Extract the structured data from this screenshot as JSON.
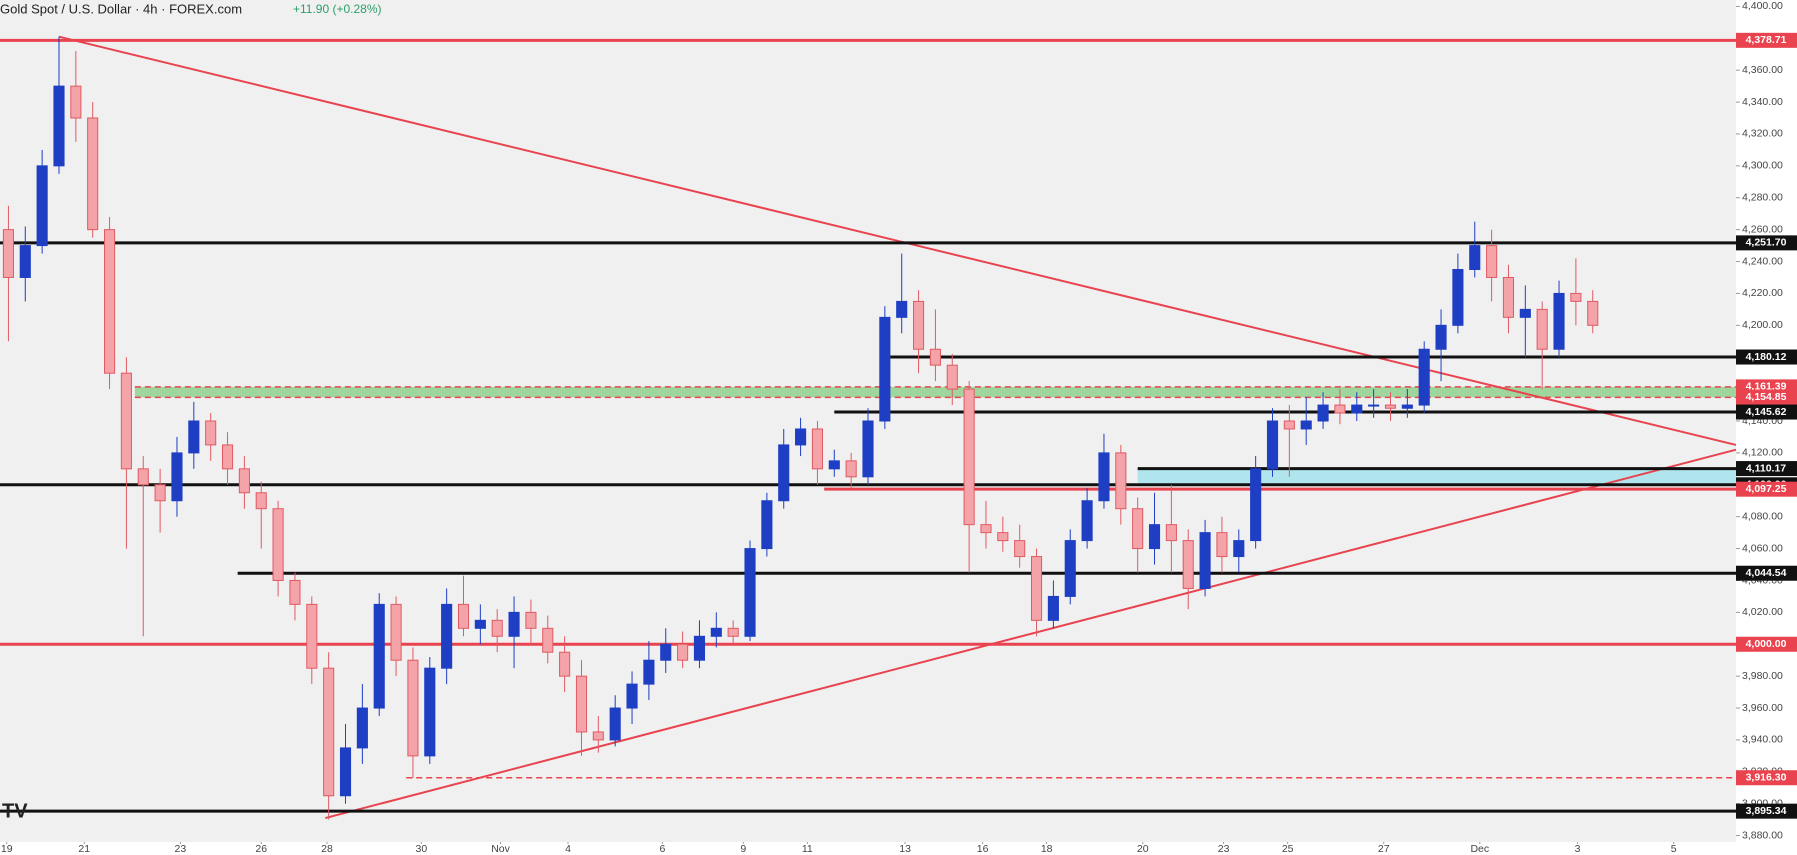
{
  "chart_data": {
    "type": "candlestick",
    "title": "Gold Spot / U.S. Dollar · 4h · FOREX.com",
    "change": "+11.90 (+0.28%)",
    "up_color": "#1e3ec4",
    "down_color": "#f4a3a8",
    "down_edge": "#e05a63",
    "xlim": [
      -0.5,
      102.5
    ],
    "ylim": [
      3876,
      4404
    ],
    "xticks": [
      {
        "value": -0.1,
        "label": "19"
      },
      {
        "value": 4.5,
        "label": "21"
      },
      {
        "value": 10.2,
        "label": "23"
      },
      {
        "value": 15.0,
        "label": "26"
      },
      {
        "value": 18.9,
        "label": "28"
      },
      {
        "value": 24.5,
        "label": "30"
      },
      {
        "value": 29.2,
        "label": "Nov"
      },
      {
        "value": 33.2,
        "label": "4"
      },
      {
        "value": 38.8,
        "label": "6"
      },
      {
        "value": 43.6,
        "label": "9"
      },
      {
        "value": 47.4,
        "label": "11"
      },
      {
        "value": 53.2,
        "label": "13"
      },
      {
        "value": 57.8,
        "label": "16"
      },
      {
        "value": 61.6,
        "label": "18"
      },
      {
        "value": 67.3,
        "label": "20"
      },
      {
        "value": 72.1,
        "label": "23"
      },
      {
        "value": 75.9,
        "label": "25"
      },
      {
        "value": 81.6,
        "label": "27"
      },
      {
        "value": 87.3,
        "label": "Dec"
      },
      {
        "value": 93.1,
        "label": "3"
      },
      {
        "value": 98.8,
        "label": "5"
      }
    ],
    "yticks": [
      {
        "value": 3880,
        "label": "3,880.00"
      },
      {
        "value": 3900,
        "label": "3,900.00"
      },
      {
        "value": 3920,
        "label": "3,920.00"
      },
      {
        "value": 3940,
        "label": "3,940.00"
      },
      {
        "value": 3960,
        "label": "3,960.00"
      },
      {
        "value": 3980,
        "label": "3,980.00"
      },
      {
        "value": 4000,
        "label": "4,000.00"
      },
      {
        "value": 4020,
        "label": "4,020.00"
      },
      {
        "value": 4040,
        "label": "4,040.00"
      },
      {
        "value": 4060,
        "label": "4,060.00"
      },
      {
        "value": 4080,
        "label": "4,080.00"
      },
      {
        "value": 4100,
        "label": "4,100.00"
      },
      {
        "value": 4120,
        "label": "4,120.00"
      },
      {
        "value": 4140,
        "label": "4,140.00"
      },
      {
        "value": 4160,
        "label": "4,160.00"
      },
      {
        "value": 4180,
        "label": "4,180.00"
      },
      {
        "value": 4200,
        "label": "4,200.00"
      },
      {
        "value": 4220,
        "label": "4,220.00"
      },
      {
        "value": 4240,
        "label": "4,240.00"
      },
      {
        "value": 4260,
        "label": "4,260.00"
      },
      {
        "value": 4280,
        "label": "4,280.00"
      },
      {
        "value": 4300,
        "label": "4,300.00"
      },
      {
        "value": 4320,
        "label": "4,320.00"
      },
      {
        "value": 4340,
        "label": "4,340.00"
      },
      {
        "value": 4360,
        "label": "4,360.00"
      },
      {
        "value": 4380,
        "label": "4,380.00"
      },
      {
        "value": 4400,
        "label": "4,400.00"
      }
    ],
    "open": [
      4260,
      4230,
      4250,
      4300,
      4350,
      4330,
      4260,
      4170,
      4110,
      4100,
      4090,
      4120,
      4140,
      4125,
      4110,
      4095,
      4085,
      4040,
      4025,
      3985,
      3905,
      3935,
      3960,
      4025,
      3990,
      3930,
      3985,
      4025,
      4010,
      4015,
      4005,
      4020,
      4010,
      3995,
      3980,
      3945,
      3940,
      3960,
      3975,
      3990,
      4000,
      3990,
      4005,
      4010,
      4005,
      4060,
      4090,
      4125,
      4135,
      4110,
      4115,
      4105,
      4140,
      4205,
      4215,
      4185,
      4175,
      4160,
      4075,
      4070,
      4065,
      4055,
      4015,
      4030,
      4065,
      4090,
      4120,
      4085,
      4060,
      4075,
      4065,
      4035,
      4070,
      4055,
      4065,
      4110,
      4140,
      4135,
      4140,
      4150,
      4145,
      4150,
      4150,
      4148,
      4150,
      4185,
      4200,
      4235,
      4250,
      4230,
      4205,
      4210,
      4185,
      4220,
      4215
    ],
    "high": [
      4275,
      4262,
      4310,
      4381,
      4372,
      4340,
      4268,
      4180,
      4118,
      4110,
      4130,
      4152,
      4145,
      4133,
      4118,
      4102,
      4090,
      4045,
      4030,
      3995,
      3950,
      3975,
      4032,
      4030,
      3998,
      3992,
      4035,
      4043,
      4025,
      4022,
      4030,
      4028,
      4018,
      4005,
      3990,
      3955,
      3968,
      3983,
      4002,
      4010,
      4008,
      4015,
      4020,
      4015,
      4065,
      4095,
      4135,
      4142,
      4140,
      4122,
      4120,
      4148,
      4212,
      4245,
      4222,
      4210,
      4182,
      4165,
      4090,
      4080,
      4075,
      4060,
      4040,
      4072,
      4098,
      4132,
      4125,
      4092,
      4095,
      4100,
      4072,
      4078,
      4080,
      4072,
      4118,
      4148,
      4150,
      4155,
      4158,
      4160,
      4158,
      4160,
      4158,
      4160,
      4190,
      4210,
      4245,
      4265,
      4260,
      4238,
      4225,
      4215,
      4228,
      4242,
      4222
    ],
    "low": [
      4190,
      4215,
      4245,
      4295,
      4315,
      4255,
      4160,
      4060,
      4005,
      4070,
      4080,
      4110,
      4115,
      4100,
      4085,
      4060,
      4030,
      4015,
      3975,
      3890,
      3900,
      3925,
      3955,
      3980,
      3916,
      3925,
      3975,
      4005,
      4000,
      3995,
      3985,
      4000,
      3988,
      3970,
      3930,
      3932,
      3936,
      3950,
      3965,
      3982,
      3985,
      3985,
      3998,
      4000,
      4002,
      4055,
      4085,
      4118,
      4100,
      4105,
      4098,
      4100,
      4135,
      4195,
      4170,
      4165,
      4150,
      4045,
      4060,
      4058,
      4048,
      4005,
      4010,
      4025,
      4060,
      4085,
      4075,
      4045,
      4050,
      4045,
      4022,
      4030,
      4045,
      4045,
      4060,
      4105,
      4105,
      4125,
      4135,
      4138,
      4140,
      4142,
      4140,
      4142,
      4145,
      4165,
      4195,
      4230,
      4215,
      4195,
      4180,
      4160,
      4180,
      4200,
      4195
    ],
    "close": [
      4230,
      4250,
      4300,
      4350,
      4330,
      4260,
      4170,
      4110,
      4100,
      4090,
      4120,
      4140,
      4125,
      4110,
      4095,
      4085,
      4040,
      4025,
      3985,
      3905,
      3935,
      3960,
      4025,
      3990,
      3930,
      3985,
      4025,
      4010,
      4015,
      4005,
      4020,
      4010,
      3995,
      3980,
      3945,
      3940,
      3960,
      3975,
      3990,
      4000,
      3990,
      4005,
      4010,
      4005,
      4060,
      4090,
      4125,
      4135,
      4110,
      4115,
      4105,
      4140,
      4205,
      4215,
      4185,
      4175,
      4160,
      4075,
      4070,
      4065,
      4055,
      4015,
      4030,
      4065,
      4090,
      4120,
      4085,
      4060,
      4075,
      4065,
      4035,
      4070,
      4055,
      4065,
      4110,
      4140,
      4135,
      4140,
      4150,
      4145,
      4150,
      4150,
      4148,
      4150,
      4185,
      4200,
      4235,
      4250,
      4230,
      4205,
      4210,
      4185,
      4220,
      4215,
      4200
    ],
    "zones": [
      {
        "low": 4154.85,
        "high": 4161.39,
        "x_start": 7.5,
        "color": "#8fd18f"
      },
      {
        "low": 4100,
        "high": 4110.17,
        "x_start": 67,
        "color": "#a6e3ec"
      }
    ],
    "levels": [
      {
        "value": 4378.71,
        "label": "4,378.71",
        "color": "#e8434f",
        "dashed": false,
        "x_start": -0.5
      },
      {
        "value": 4251.7,
        "label": "4,251.70",
        "color": "#111111",
        "dashed": false,
        "x_start": -0.5
      },
      {
        "value": 4180.12,
        "label": "4,180.12",
        "color": "#111111",
        "dashed": false,
        "x_start": 52
      },
      {
        "value": 4161.39,
        "label": "4,161.39",
        "color": "#e8434f",
        "dashed": true,
        "x_start": 7.5
      },
      {
        "value": 4154.85,
        "label": "4,154.85",
        "color": "#e8434f",
        "dashed": true,
        "x_start": 7.5
      },
      {
        "value": 4145.62,
        "label": "4,145.62",
        "color": "#111111",
        "dashed": false,
        "x_start": 49
      },
      {
        "value": 4110.17,
        "label": "4,110.17",
        "color": "#111111",
        "dashed": false,
        "x_start": 67
      },
      {
        "value": 4100,
        "label": "4,100.00",
        "color": "#111111",
        "dashed": false,
        "x_start": -0.5
      },
      {
        "value": 4097.25,
        "label": "4,097.25",
        "color": "#e8434f",
        "dashed": false,
        "x_start": 48.4
      },
      {
        "value": 4044.54,
        "label": "4,044.54",
        "color": "#111111",
        "dashed": false,
        "x_start": 13.6
      },
      {
        "value": 4000,
        "label": "4,000.00",
        "color": "#e8434f",
        "dashed": false,
        "x_start": -0.5
      },
      {
        "value": 3916.3,
        "label": "3,916.30",
        "color": "#e8434f",
        "dashed": true,
        "x_start": 23.6
      },
      {
        "value": 3895.34,
        "label": "3,895.34",
        "color": "#111111",
        "dashed": false,
        "x_start": -0.5
      }
    ],
    "trendlines": [
      {
        "x": [
          3,
          102.5
        ],
        "y": [
          4381,
          4125
        ],
        "color": "#e8434f"
      },
      {
        "x": [
          18.8,
          102.5
        ],
        "y": [
          3891,
          4122
        ],
        "color": "#e8434f"
      }
    ]
  }
}
